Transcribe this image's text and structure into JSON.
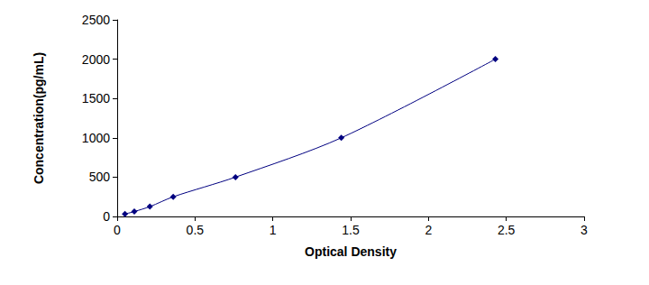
{
  "chart_data": {
    "type": "line",
    "xlabel": "Optical Density",
    "ylabel": "Concentration(pg/mL)",
    "x": [
      0.05,
      0.11,
      0.21,
      0.36,
      0.76,
      1.44,
      2.43
    ],
    "values": [
      31.25,
      62.5,
      125,
      250,
      500,
      1000,
      2000
    ],
    "color": "#000080",
    "marker": "diamond",
    "line_style": "solid",
    "xlim": [
      0,
      3
    ],
    "xticks": [
      0,
      0.5,
      1,
      1.5,
      2,
      2.5,
      3
    ],
    "ylim": [
      0,
      2500
    ],
    "yticks": [
      0,
      500,
      1000,
      1500,
      2000,
      2500
    ],
    "grid": false
  }
}
